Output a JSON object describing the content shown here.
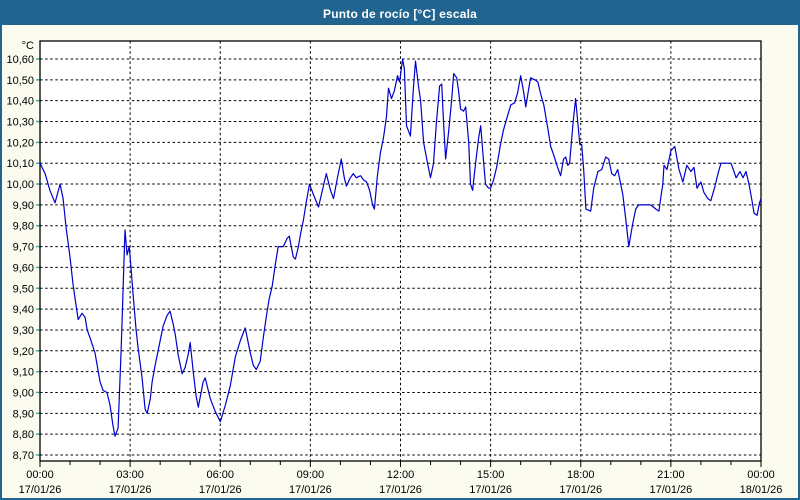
{
  "window": {
    "title": "Punto de rocío [°C] escala"
  },
  "colors": {
    "titlebar": "#20648f",
    "window_border": "#20648f",
    "background": "#fbfbf0",
    "plot_background": "#ffffff",
    "frame": "#000000",
    "grid": "#000000",
    "text": "#000000",
    "ytick_mark": "#3fb0b0",
    "line": "#0000cc"
  },
  "chart_data": {
    "type": "line",
    "title": "Punto de rocío [°C] escala",
    "ylabel": "°C",
    "decimal_separator": ",",
    "ylim": [
      8.7,
      10.6
    ],
    "ytick_step": 0.1,
    "ytick_labels": [
      "10,60",
      "10,50",
      "10,40",
      "10,30",
      "10,20",
      "10,10",
      "10,00",
      "9,90",
      "9,80",
      "9,70",
      "9,60",
      "9,50",
      "9,40",
      "9,30",
      "9,20",
      "9,10",
      "9,00",
      "8,90",
      "8,80",
      "8,70"
    ],
    "xlim": [
      0,
      24
    ],
    "x_unit": "hours",
    "minor_xtick_every_hours": 1,
    "grid": "dashed",
    "legend_position": "none",
    "xticks": [
      {
        "hour": 0,
        "time": "00:00",
        "date": "17/01/26"
      },
      {
        "hour": 3,
        "time": "03:00",
        "date": "17/01/26"
      },
      {
        "hour": 6,
        "time": "06:00",
        "date": "17/01/26"
      },
      {
        "hour": 9,
        "time": "09:00",
        "date": "17/01/26"
      },
      {
        "hour": 12,
        "time": "12:00",
        "date": "17/01/26"
      },
      {
        "hour": 15,
        "time": "15:00",
        "date": "17/01/26"
      },
      {
        "hour": 18,
        "time": "18:00",
        "date": "17/01/26"
      },
      {
        "hour": 21,
        "time": "21:00",
        "date": "17/01/26"
      },
      {
        "hour": 24,
        "time": "00:00",
        "date": "18/01/26"
      }
    ],
    "series": [
      {
        "name": "Punto de rocío [°C]",
        "color": "#0000cc",
        "points": [
          [
            0,
            10.1
          ],
          [
            0.17,
            10.05
          ],
          [
            0.33,
            9.97
          ],
          [
            0.5,
            9.91
          ],
          [
            0.67,
            10.0
          ],
          [
            0.77,
            9.93
          ],
          [
            0.87,
            9.79
          ],
          [
            1.0,
            9.65
          ],
          [
            1.1,
            9.52
          ],
          [
            1.2,
            9.42
          ],
          [
            1.27,
            9.35
          ],
          [
            1.4,
            9.38
          ],
          [
            1.5,
            9.36
          ],
          [
            1.57,
            9.3
          ],
          [
            1.67,
            9.26
          ],
          [
            1.83,
            9.19
          ],
          [
            2.0,
            9.05
          ],
          [
            2.1,
            9.01
          ],
          [
            2.23,
            9.0
          ],
          [
            2.33,
            8.94
          ],
          [
            2.43,
            8.84
          ],
          [
            2.5,
            8.79
          ],
          [
            2.6,
            8.83
          ],
          [
            2.7,
            9.2
          ],
          [
            2.83,
            9.78
          ],
          [
            2.9,
            9.66
          ],
          [
            2.97,
            9.7
          ],
          [
            3.03,
            9.6
          ],
          [
            3.1,
            9.47
          ],
          [
            3.2,
            9.3
          ],
          [
            3.27,
            9.21
          ],
          [
            3.4,
            9.07
          ],
          [
            3.5,
            8.92
          ],
          [
            3.57,
            8.9
          ],
          [
            3.67,
            8.97
          ],
          [
            3.73,
            9.05
          ],
          [
            3.83,
            9.13
          ],
          [
            3.93,
            9.2
          ],
          [
            4.1,
            9.32
          ],
          [
            4.23,
            9.37
          ],
          [
            4.33,
            9.39
          ],
          [
            4.43,
            9.33
          ],
          [
            4.5,
            9.28
          ],
          [
            4.6,
            9.18
          ],
          [
            4.73,
            9.09
          ],
          [
            4.83,
            9.12
          ],
          [
            4.93,
            9.18
          ],
          [
            5.0,
            9.24
          ],
          [
            5.1,
            9.1
          ],
          [
            5.2,
            8.98
          ],
          [
            5.27,
            8.93
          ],
          [
            5.43,
            9.05
          ],
          [
            5.5,
            9.07
          ],
          [
            5.67,
            8.97
          ],
          [
            5.83,
            8.91
          ],
          [
            6.0,
            8.86
          ],
          [
            6.17,
            8.94
          ],
          [
            6.33,
            9.03
          ],
          [
            6.5,
            9.17
          ],
          [
            6.67,
            9.25
          ],
          [
            6.83,
            9.31
          ],
          [
            7.0,
            9.19
          ],
          [
            7.1,
            9.13
          ],
          [
            7.2,
            9.11
          ],
          [
            7.33,
            9.15
          ],
          [
            7.43,
            9.26
          ],
          [
            7.53,
            9.36
          ],
          [
            7.63,
            9.45
          ],
          [
            7.73,
            9.51
          ],
          [
            7.83,
            9.61
          ],
          [
            7.93,
            9.7
          ],
          [
            8.1,
            9.7
          ],
          [
            8.23,
            9.74
          ],
          [
            8.3,
            9.75
          ],
          [
            8.43,
            9.65
          ],
          [
            8.5,
            9.64
          ],
          [
            8.6,
            9.7
          ],
          [
            8.67,
            9.76
          ],
          [
            8.77,
            9.83
          ],
          [
            8.87,
            9.92
          ],
          [
            8.97,
            10.0
          ],
          [
            9.1,
            9.95
          ],
          [
            9.27,
            9.89
          ],
          [
            9.4,
            9.97
          ],
          [
            9.53,
            10.05
          ],
          [
            9.67,
            9.97
          ],
          [
            9.77,
            9.93
          ],
          [
            9.9,
            10.03
          ],
          [
            10.03,
            10.12
          ],
          [
            10.13,
            10.03
          ],
          [
            10.2,
            9.99
          ],
          [
            10.33,
            10.03
          ],
          [
            10.43,
            10.05
          ],
          [
            10.53,
            10.03
          ],
          [
            10.67,
            10.04
          ],
          [
            10.77,
            10.02
          ],
          [
            10.87,
            10.01
          ],
          [
            10.97,
            9.97
          ],
          [
            11.07,
            9.9
          ],
          [
            11.13,
            9.88
          ],
          [
            11.23,
            10.04
          ],
          [
            11.33,
            10.15
          ],
          [
            11.43,
            10.22
          ],
          [
            11.53,
            10.32
          ],
          [
            11.6,
            10.46
          ],
          [
            11.7,
            10.41
          ],
          [
            11.8,
            10.45
          ],
          [
            11.9,
            10.52
          ],
          [
            11.97,
            10.49
          ],
          [
            12.07,
            10.6
          ],
          [
            12.13,
            10.55
          ],
          [
            12.2,
            10.28
          ],
          [
            12.33,
            10.23
          ],
          [
            12.43,
            10.46
          ],
          [
            12.5,
            10.59
          ],
          [
            12.6,
            10.47
          ],
          [
            12.67,
            10.4
          ],
          [
            12.77,
            10.2
          ],
          [
            12.9,
            10.1
          ],
          [
            13.0,
            10.03
          ],
          [
            13.1,
            10.1
          ],
          [
            13.2,
            10.3
          ],
          [
            13.3,
            10.47
          ],
          [
            13.37,
            10.48
          ],
          [
            13.43,
            10.3
          ],
          [
            13.5,
            10.12
          ],
          [
            13.6,
            10.25
          ],
          [
            13.7,
            10.4
          ],
          [
            13.77,
            10.53
          ],
          [
            13.87,
            10.51
          ],
          [
            13.93,
            10.45
          ],
          [
            14.0,
            10.36
          ],
          [
            14.1,
            10.35
          ],
          [
            14.17,
            10.37
          ],
          [
            14.27,
            10.2
          ],
          [
            14.33,
            10.0
          ],
          [
            14.4,
            9.97
          ],
          [
            14.5,
            10.1
          ],
          [
            14.6,
            10.22
          ],
          [
            14.67,
            10.28
          ],
          [
            14.77,
            10.1
          ],
          [
            14.83,
            10.0
          ],
          [
            14.93,
            9.98
          ],
          [
            15.0,
            9.98
          ],
          [
            15.1,
            10.02
          ],
          [
            15.2,
            10.08
          ],
          [
            15.33,
            10.19
          ],
          [
            15.43,
            10.26
          ],
          [
            15.53,
            10.31
          ],
          [
            15.67,
            10.38
          ],
          [
            15.8,
            10.39
          ],
          [
            15.9,
            10.44
          ],
          [
            16.0,
            10.52
          ],
          [
            16.1,
            10.44
          ],
          [
            16.17,
            10.37
          ],
          [
            16.27,
            10.46
          ],
          [
            16.33,
            10.51
          ],
          [
            16.47,
            10.5
          ],
          [
            16.57,
            10.49
          ],
          [
            16.67,
            10.43
          ],
          [
            16.77,
            10.38
          ],
          [
            16.9,
            10.27
          ],
          [
            17.0,
            10.18
          ],
          [
            17.1,
            10.14
          ],
          [
            17.23,
            10.08
          ],
          [
            17.33,
            10.04
          ],
          [
            17.43,
            10.12
          ],
          [
            17.5,
            10.13
          ],
          [
            17.57,
            10.09
          ],
          [
            17.63,
            10.1
          ],
          [
            17.75,
            10.3
          ],
          [
            17.83,
            10.41
          ],
          [
            17.9,
            10.3
          ],
          [
            17.97,
            10.19
          ],
          [
            18.03,
            10.19
          ],
          [
            18.1,
            10.06
          ],
          [
            18.17,
            9.88
          ],
          [
            18.33,
            9.87
          ],
          [
            18.43,
            9.98
          ],
          [
            18.57,
            10.06
          ],
          [
            18.7,
            10.07
          ],
          [
            18.83,
            10.13
          ],
          [
            18.93,
            10.12
          ],
          [
            19.03,
            10.05
          ],
          [
            19.13,
            10.04
          ],
          [
            19.23,
            10.07
          ],
          [
            19.33,
            10.0
          ],
          [
            19.4,
            9.95
          ],
          [
            19.5,
            9.83
          ],
          [
            19.6,
            9.7
          ],
          [
            19.73,
            9.81
          ],
          [
            19.83,
            9.88
          ],
          [
            19.93,
            9.9
          ],
          [
            20.33,
            9.9
          ],
          [
            20.5,
            9.88
          ],
          [
            20.6,
            9.87
          ],
          [
            20.73,
            10.0
          ],
          [
            20.77,
            10.09
          ],
          [
            20.87,
            10.07
          ],
          [
            21.0,
            10.16
          ],
          [
            21.13,
            10.18
          ],
          [
            21.27,
            10.07
          ],
          [
            21.4,
            10.01
          ],
          [
            21.53,
            10.09
          ],
          [
            21.67,
            10.06
          ],
          [
            21.77,
            10.08
          ],
          [
            21.87,
            9.98
          ],
          [
            22.0,
            10.01
          ],
          [
            22.1,
            9.96
          ],
          [
            22.23,
            9.93
          ],
          [
            22.33,
            9.92
          ],
          [
            22.47,
            9.99
          ],
          [
            22.57,
            10.05
          ],
          [
            22.67,
            10.1
          ],
          [
            23.0,
            10.1
          ],
          [
            23.1,
            10.06
          ],
          [
            23.17,
            10.03
          ],
          [
            23.3,
            10.06
          ],
          [
            23.4,
            10.03
          ],
          [
            23.5,
            10.06
          ],
          [
            23.6,
            10.0
          ],
          [
            23.7,
            9.92
          ],
          [
            23.77,
            9.86
          ],
          [
            23.87,
            9.85
          ],
          [
            23.95,
            9.91
          ],
          [
            24.0,
            9.93
          ]
        ]
      }
    ]
  }
}
